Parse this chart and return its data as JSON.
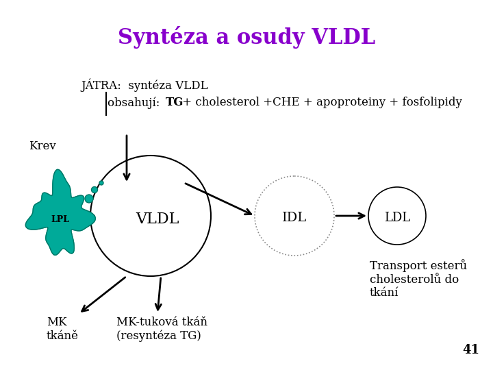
{
  "title": "Syntéza a osudy VLDL",
  "title_color": "#8800CC",
  "title_fontsize": 22,
  "bg_color": "#FFFFFF",
  "text_color": "#000000",
  "jatra_line1": "JÁTRA:  syntéza VLDL",
  "krev_label": "Krev",
  "obsahuji_pre": "obsahují: ",
  "obsahuji_bold": "TG",
  "obsahuji_post": " + cholesterol +CHE + apoproteiny + fosfolipidy",
  "vldl_label": "VLDL",
  "idl_label": "IDL",
  "ldl_label": "LDL",
  "lpl_label": "LPL",
  "mk_label": "MK\ntkáně",
  "mk_tukova_label": "MK-tuková tkáň\n(resyntéza TG)",
  "transport_label": "Transport esterů\ncholesterolů do\ntkání",
  "page_number": "41",
  "teal_color": "#00AA99",
  "teal_dark": "#007766"
}
